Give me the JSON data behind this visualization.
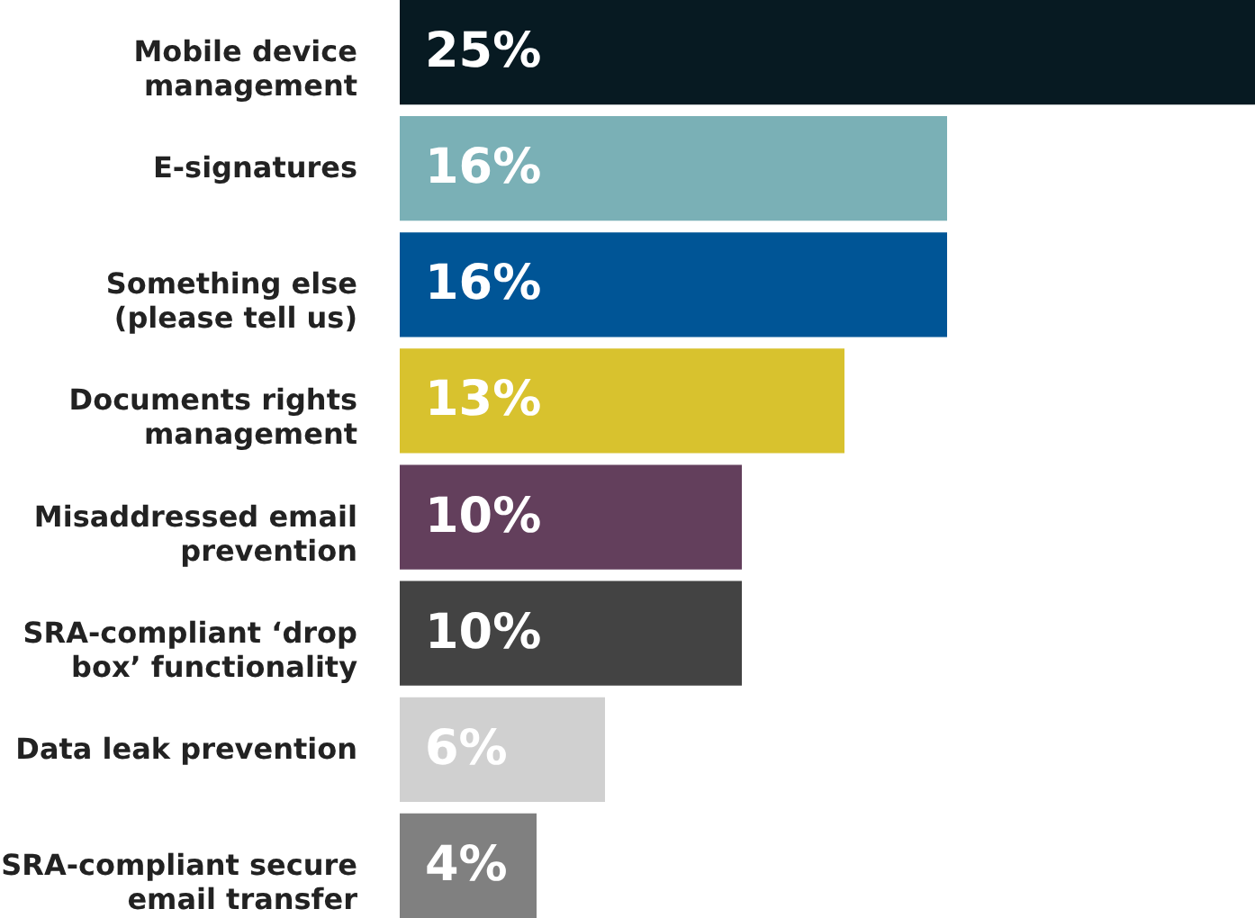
{
  "chart_data": {
    "type": "bar",
    "orientation": "horizontal",
    "categories": [
      "Mobile device management",
      "E-signatures",
      "Something else (please tell us)",
      "Documents rights management",
      "Misaddressed email prevention",
      "SRA-compliant ‘drop box’ functionality",
      "Data leak prevention",
      "SRA-compliant secure email transfer"
    ],
    "values": [
      25,
      16,
      16,
      13,
      10,
      10,
      6,
      4
    ],
    "value_labels": [
      "25%",
      "16%",
      "16%",
      "13%",
      "10%",
      "10%",
      "6%",
      "4%"
    ],
    "colors": [
      "#071a22",
      "#7ab0b6",
      "#005596",
      "#d8c22e",
      "#633f5c",
      "#434343",
      "#d0d0d0",
      "#808080"
    ],
    "grid": false
  }
}
